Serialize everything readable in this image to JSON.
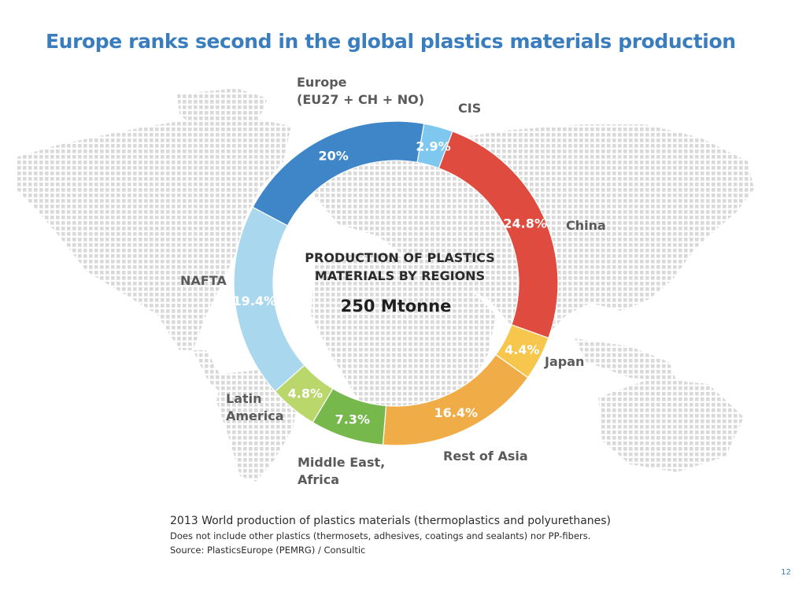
{
  "page": {
    "title": "Europe ranks second in the global plastics materials production",
    "page_number": "12"
  },
  "chart_data": {
    "type": "pie",
    "title": "PRODUCTION OF PLASTICS MATERIALS BY REGIONS",
    "total": "250 Mtonne",
    "slices": [
      {
        "name": "Europe (EU27 + CH + NO)",
        "value": 20.0,
        "label": "20%",
        "color": "#3f86c8"
      },
      {
        "name": "CIS",
        "value": 2.9,
        "label": "2.9%",
        "color": "#7ec8ef"
      },
      {
        "name": "China",
        "value": 24.8,
        "label": "24.8%",
        "color": "#df4b3e"
      },
      {
        "name": "Japan",
        "value": 4.4,
        "label": "4.4%",
        "color": "#f7c64c"
      },
      {
        "name": "Rest of Asia",
        "value": 16.4,
        "label": "16.4%",
        "color": "#f0ac46"
      },
      {
        "name": "Middle East, Africa",
        "value": 7.3,
        "label": "7.3%",
        "color": "#76b84c"
      },
      {
        "name": "Latin America",
        "value": 4.8,
        "label": "4.8%",
        "color": "#b9d76b"
      },
      {
        "name": "NAFTA",
        "value": 19.4,
        "label": "19.4%",
        "color": "#a9d8ee"
      }
    ]
  },
  "region_labels": {
    "europe_line1": "Europe",
    "europe_line2": "(EU27 + CH + NO)",
    "cis": "CIS",
    "china": "China",
    "japan": "Japan",
    "rest_of_asia": "Rest of Asia",
    "middle_east_line1": "Middle East,",
    "middle_east_line2": "Africa",
    "latin_line1": "Latin",
    "latin_line2": "America",
    "nafta": "NAFTA"
  },
  "notes": {
    "main": "2013 World production of plastics materials (thermoplastics and polyurethanes)",
    "exclusion": "Does not include other plastics (thermosets, adhesives, coatings and sealants) nor PP-fibers.",
    "source": "Source: PlasticsEurope (PEMRG) / Consultic"
  }
}
